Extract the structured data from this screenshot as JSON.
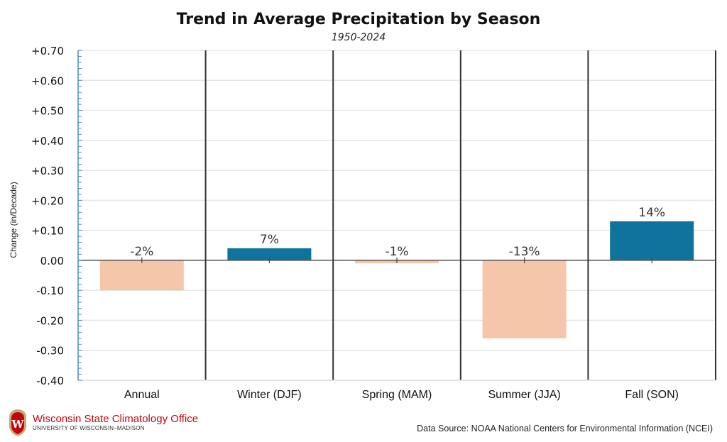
{
  "chart_data": {
    "type": "bar",
    "title": "Trend in Average Precipitation by Season",
    "subtitle": "1950-2024",
    "xlabel": "",
    "ylabel": "Change (in/Decade)",
    "ylim": [
      -0.4,
      0.7
    ],
    "yticks": [
      0.7,
      0.6,
      0.5,
      0.4,
      0.3,
      0.2,
      0.1,
      0.0,
      -0.1,
      -0.2,
      -0.3,
      -0.4
    ],
    "ytick_labels": [
      "+0.70",
      "+0.60",
      "+0.50",
      "+0.40",
      "+0.30",
      "+0.20",
      "+0.10",
      "0.00",
      "-0.10",
      "-0.20",
      "-0.30",
      "-0.40"
    ],
    "minor_tick_step": 0.02,
    "grid": true,
    "categories": [
      "Annual",
      "Winter (DJF)",
      "Spring (MAM)",
      "Summer (JJA)",
      "Fall (SON)"
    ],
    "values": [
      -0.1,
      0.04,
      -0.01,
      -0.26,
      0.13
    ],
    "data_labels": [
      "-2%",
      "7%",
      "-1%",
      "-13%",
      "14%"
    ],
    "colors": {
      "positive": "#0f739e",
      "negative": "#f5c6aa",
      "axis": "#4a8db5",
      "divider": "#333333",
      "grid": "#e6e6e6"
    },
    "legend": "none"
  },
  "footer": {
    "org_name": "Wisconsin State Climatology Office",
    "org_sub": "UNIVERSITY OF WISCONSIN–MADISON",
    "crest_letter": "W",
    "source": "Data Source: NOAA National Centers for Environmental Information (NCEI)"
  }
}
